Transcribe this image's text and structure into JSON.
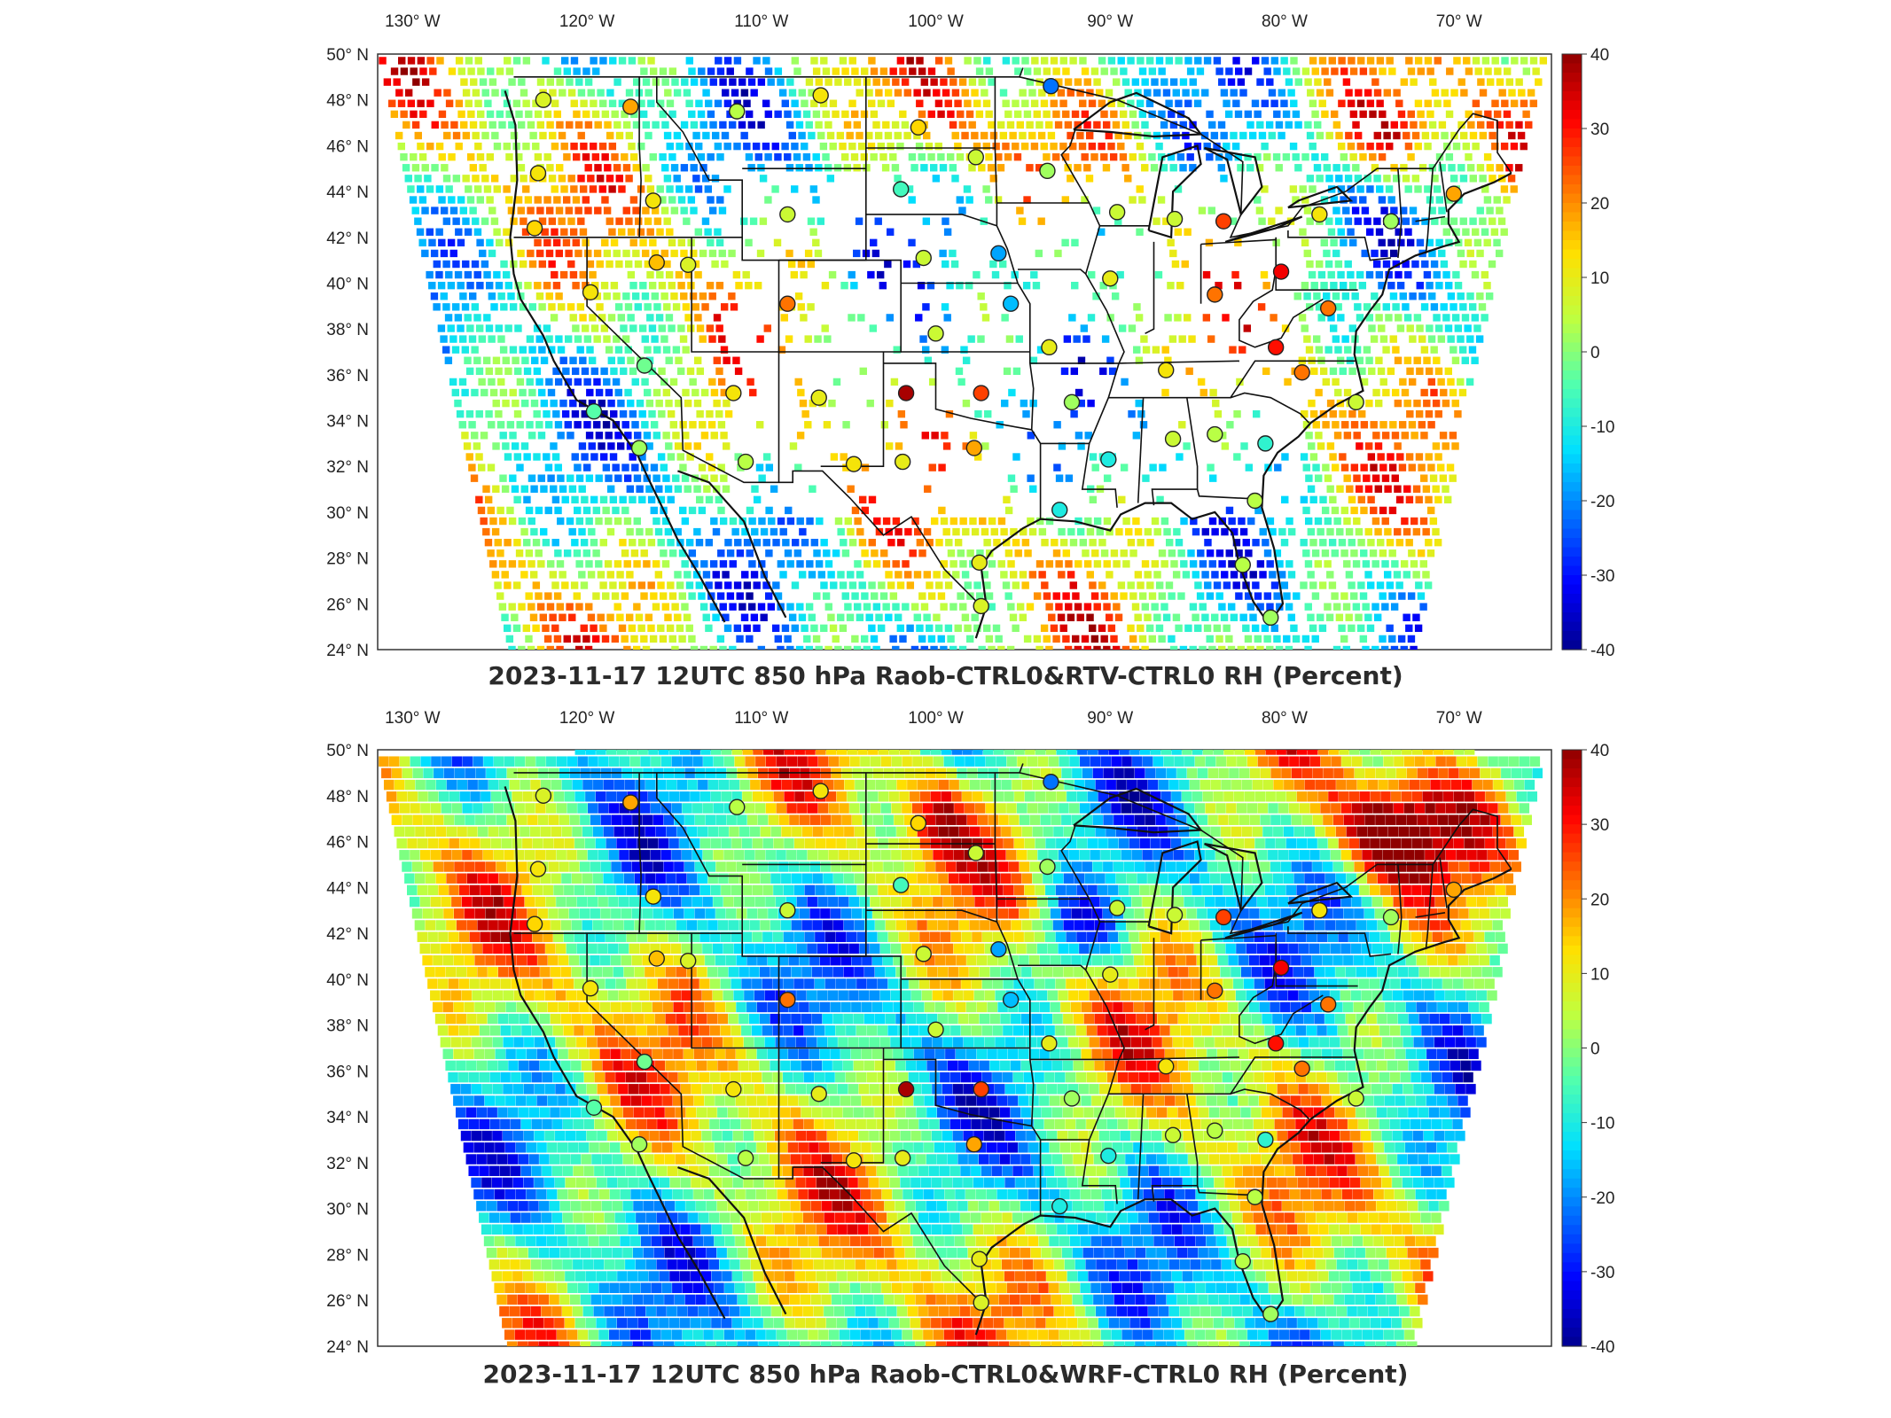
{
  "colors": {
    "colormap": [
      "#00008f",
      "#0000ff",
      "#006fff",
      "#00dfff",
      "#50ffaf",
      "#bfff3f",
      "#ffdf00",
      "#ff7000",
      "#ff0000",
      "#8f0000"
    ],
    "frame": "#333333",
    "boundary": "#111111"
  },
  "axes": {
    "lon_labels": [
      "130° W",
      "120° W",
      "110° W",
      "100° W",
      "90° W",
      "80° W",
      "70° W"
    ],
    "lat_labels": [
      "50° N",
      "48° N",
      "46° N",
      "44° N",
      "42° N",
      "40° N",
      "38° N",
      "36° N",
      "34° N",
      "32° N",
      "30° N",
      "28° N",
      "26° N",
      "24° N"
    ]
  },
  "colorbar": {
    "range": [
      -40,
      40
    ],
    "tick_labels": [
      "40",
      "30",
      "20",
      "10",
      "0",
      "-10",
      "-20",
      "-30",
      "-40"
    ]
  },
  "panels": [
    {
      "title": "2023-11-17 12UTC 850 hPa Raob-CTRL0&RTV-CTRL0 RH (Percent)",
      "field_coverage": "sparse retrieval points"
    },
    {
      "title": "2023-11-17 12UTC 850 hPa Raob-CTRL0&WRF-CTRL0 RH (Percent)",
      "field_coverage": "full model domain"
    }
  ],
  "stations": [
    {
      "lon": -122.5,
      "lat": 48.0,
      "v": 8
    },
    {
      "lon": -117.5,
      "lat": 47.7,
      "v": 18
    },
    {
      "lon": -111.4,
      "lat": 47.5,
      "v": 4
    },
    {
      "lon": -106.6,
      "lat": 48.2,
      "v": 12
    },
    {
      "lon": -101.0,
      "lat": 46.8,
      "v": 14
    },
    {
      "lon": -97.7,
      "lat": 45.5,
      "v": 6
    },
    {
      "lon": -93.6,
      "lat": 44.9,
      "v": 2
    },
    {
      "lon": -93.4,
      "lat": 48.6,
      "v": -22
    },
    {
      "lon": -122.8,
      "lat": 44.8,
      "v": 12
    },
    {
      "lon": -123.0,
      "lat": 42.4,
      "v": 14
    },
    {
      "lon": -116.2,
      "lat": 43.6,
      "v": 12
    },
    {
      "lon": -108.5,
      "lat": 43.0,
      "v": 6
    },
    {
      "lon": -102.0,
      "lat": 44.1,
      "v": -6
    },
    {
      "lon": -100.7,
      "lat": 41.1,
      "v": 6
    },
    {
      "lon": -96.4,
      "lat": 41.3,
      "v": -18
    },
    {
      "lon": -114.2,
      "lat": 40.8,
      "v": 8
    },
    {
      "lon": -119.8,
      "lat": 39.6,
      "v": 12
    },
    {
      "lon": -116.0,
      "lat": 40.9,
      "v": 16
    },
    {
      "lon": -108.5,
      "lat": 39.1,
      "v": 22
    },
    {
      "lon": -100.0,
      "lat": 37.8,
      "v": 6
    },
    {
      "lon": -95.7,
      "lat": 39.1,
      "v": -16
    },
    {
      "lon": -90.0,
      "lat": 40.2,
      "v": 10
    },
    {
      "lon": -86.3,
      "lat": 42.8,
      "v": 6
    },
    {
      "lon": -83.5,
      "lat": 42.7,
      "v": 26
    },
    {
      "lon": -84.0,
      "lat": 39.5,
      "v": 22
    },
    {
      "lon": -80.2,
      "lat": 40.5,
      "v": 32
    },
    {
      "lon": -78.0,
      "lat": 43.0,
      "v": 12
    },
    {
      "lon": -73.9,
      "lat": 42.7,
      "v": 2
    },
    {
      "lon": -70.3,
      "lat": 43.9,
      "v": 18
    },
    {
      "lon": -77.5,
      "lat": 38.9,
      "v": 22
    },
    {
      "lon": -79.0,
      "lat": 36.1,
      "v": 22
    },
    {
      "lon": -80.5,
      "lat": 37.2,
      "v": 30
    },
    {
      "lon": -75.9,
      "lat": 34.8,
      "v": 6
    },
    {
      "lon": -81.1,
      "lat": 33.0,
      "v": -8
    },
    {
      "lon": -84.0,
      "lat": 33.4,
      "v": 4
    },
    {
      "lon": -86.4,
      "lat": 33.2,
      "v": 6
    },
    {
      "lon": -86.8,
      "lat": 36.2,
      "v": 12
    },
    {
      "lon": -90.1,
      "lat": 32.3,
      "v": -10
    },
    {
      "lon": -92.2,
      "lat": 34.8,
      "v": 2
    },
    {
      "lon": -93.5,
      "lat": 37.2,
      "v": 10
    },
    {
      "lon": -92.9,
      "lat": 30.1,
      "v": -10
    },
    {
      "lon": -97.8,
      "lat": 32.8,
      "v": 18
    },
    {
      "lon": -97.4,
      "lat": 35.2,
      "v": 26
    },
    {
      "lon": -101.7,
      "lat": 35.2,
      "v": 38
    },
    {
      "lon": -101.9,
      "lat": 32.2,
      "v": 10
    },
    {
      "lon": -106.7,
      "lat": 35.0,
      "v": 10
    },
    {
      "lon": -104.7,
      "lat": 32.1,
      "v": 12
    },
    {
      "lon": -111.6,
      "lat": 35.2,
      "v": 12
    },
    {
      "lon": -110.9,
      "lat": 32.2,
      "v": 4
    },
    {
      "lon": -117.0,
      "lat": 32.8,
      "v": 2
    },
    {
      "lon": -119.6,
      "lat": 34.4,
      "v": -4
    },
    {
      "lon": -116.7,
      "lat": 36.4,
      "v": -2
    },
    {
      "lon": -97.5,
      "lat": 27.8,
      "v": 10
    },
    {
      "lon": -97.4,
      "lat": 25.9,
      "v": 8
    },
    {
      "lon": -82.4,
      "lat": 27.7,
      "v": 4
    },
    {
      "lon": -80.8,
      "lat": 25.4,
      "v": 2
    },
    {
      "lon": -81.7,
      "lat": 30.5,
      "v": 4
    },
    {
      "lon": -89.6,
      "lat": 43.1,
      "v": 6
    }
  ]
}
